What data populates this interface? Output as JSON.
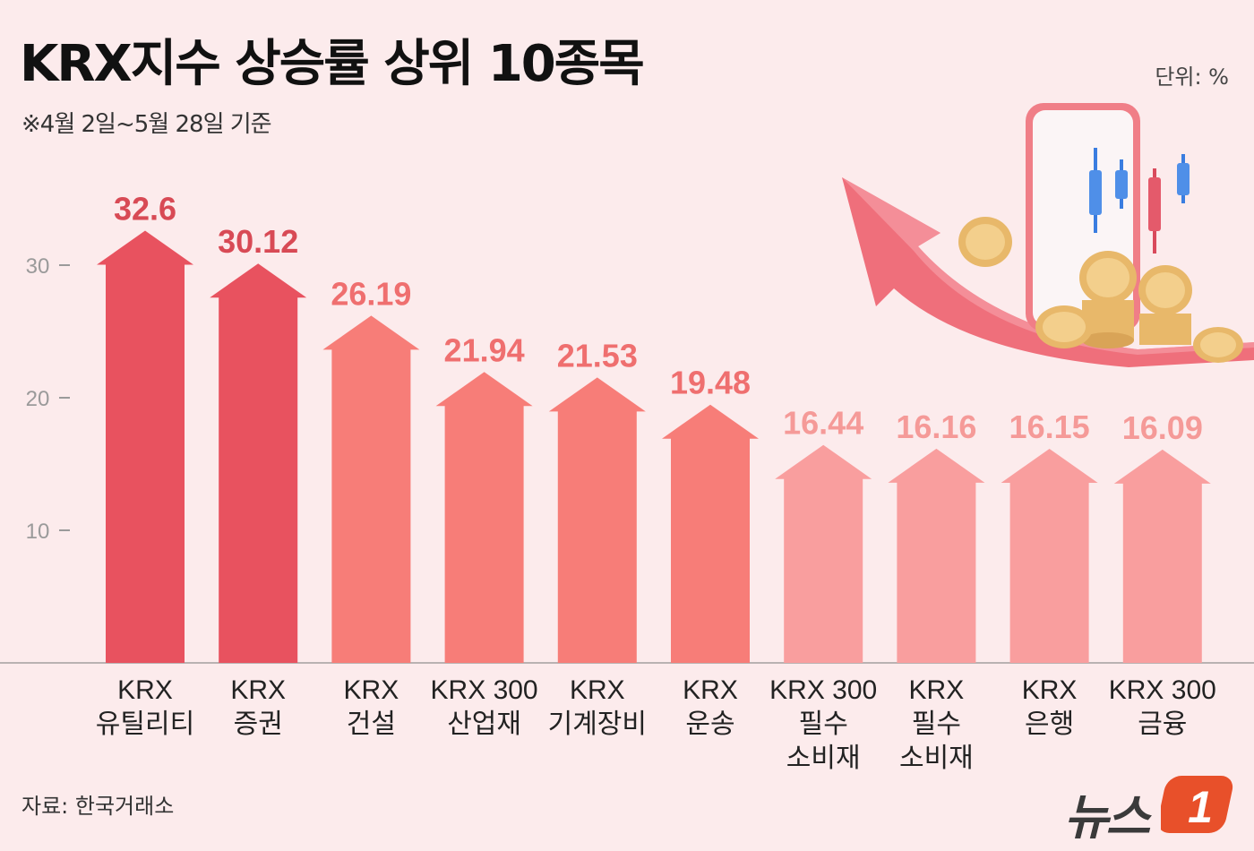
{
  "title": "KRX지수 상승률 상위 10종목",
  "subtitle": "※4월 2일~5월 28일 기준",
  "unit": "단위: %",
  "source": "자료: 한국거래소",
  "logo": {
    "text": "뉴스",
    "mark": "1"
  },
  "colors": {
    "dark": "#e8525f",
    "mid": "#f77d78",
    "light": "#f99e9e",
    "background": "#fcebec"
  },
  "chart_data": {
    "type": "bar",
    "title": "KRX지수 상승률 상위 10종목",
    "ylabel": "단위: %",
    "ylim": [
      0,
      34
    ],
    "yticks": [
      10,
      20,
      30
    ],
    "grid": false,
    "categories": [
      [
        "KRX",
        "유틸리티"
      ],
      [
        "KRX",
        "증권"
      ],
      [
        "KRX",
        "건설"
      ],
      [
        "KRX 300",
        "산업재"
      ],
      [
        "KRX",
        "기계장비"
      ],
      [
        "KRX",
        "운송"
      ],
      [
        "KRX 300",
        "필수",
        "소비재"
      ],
      [
        "KRX",
        "필수",
        "소비재"
      ],
      [
        "KRX",
        "은행"
      ],
      [
        "KRX 300",
        "금융"
      ]
    ],
    "values": [
      32.6,
      30.12,
      26.19,
      21.94,
      21.53,
      19.48,
      16.44,
      16.16,
      16.15,
      16.09
    ],
    "value_labels": [
      "32.6",
      "30.12",
      "26.19",
      "21.94",
      "21.53",
      "19.48",
      "16.44",
      "16.16",
      "16.15",
      "16.09"
    ],
    "shade": [
      "dark",
      "dark",
      "mid",
      "mid",
      "mid",
      "mid",
      "light",
      "light",
      "light",
      "light"
    ]
  }
}
